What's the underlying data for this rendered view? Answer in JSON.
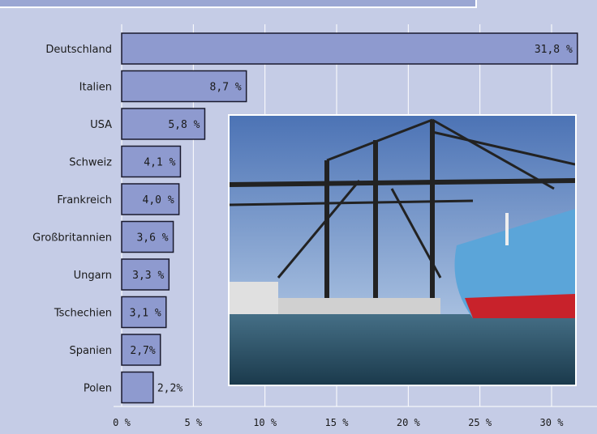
{
  "chart_data": {
    "type": "bar",
    "orientation": "horizontal",
    "title": "",
    "xlabel": "",
    "ylabel": "",
    "categories": [
      "Deutschland",
      "Italien",
      "USA",
      "Schweiz",
      "Frankreich",
      "Großbritannien",
      "Ungarn",
      "Tschechien",
      "Spanien",
      "Polen"
    ],
    "values": [
      31.8,
      8.7,
      5.8,
      4.1,
      4.0,
      3.6,
      3.3,
      3.1,
      2.7,
      2.2
    ],
    "value_labels": [
      "31,8 %",
      "8,7 %",
      "5,8 %",
      "4,1 %",
      "4,0 %",
      "3,6 %",
      "3,3 %",
      "3,1 %",
      "2,7%",
      "2,2%"
    ],
    "xlim": [
      0,
      33
    ],
    "xticks": [
      0,
      5,
      10,
      15,
      20,
      25,
      30
    ],
    "xtick_labels": [
      "0 %",
      "5 %",
      "10 %",
      "15 %",
      "20 %",
      "25 %",
      "30 %"
    ],
    "grid": true,
    "colors": {
      "bar": "#8e9acf",
      "bar_border": "#1a1a2e",
      "grid": "#ffffff",
      "background": "#c5cce6"
    }
  },
  "photo": {
    "subject": "container-ship-and-cranes-photo"
  }
}
